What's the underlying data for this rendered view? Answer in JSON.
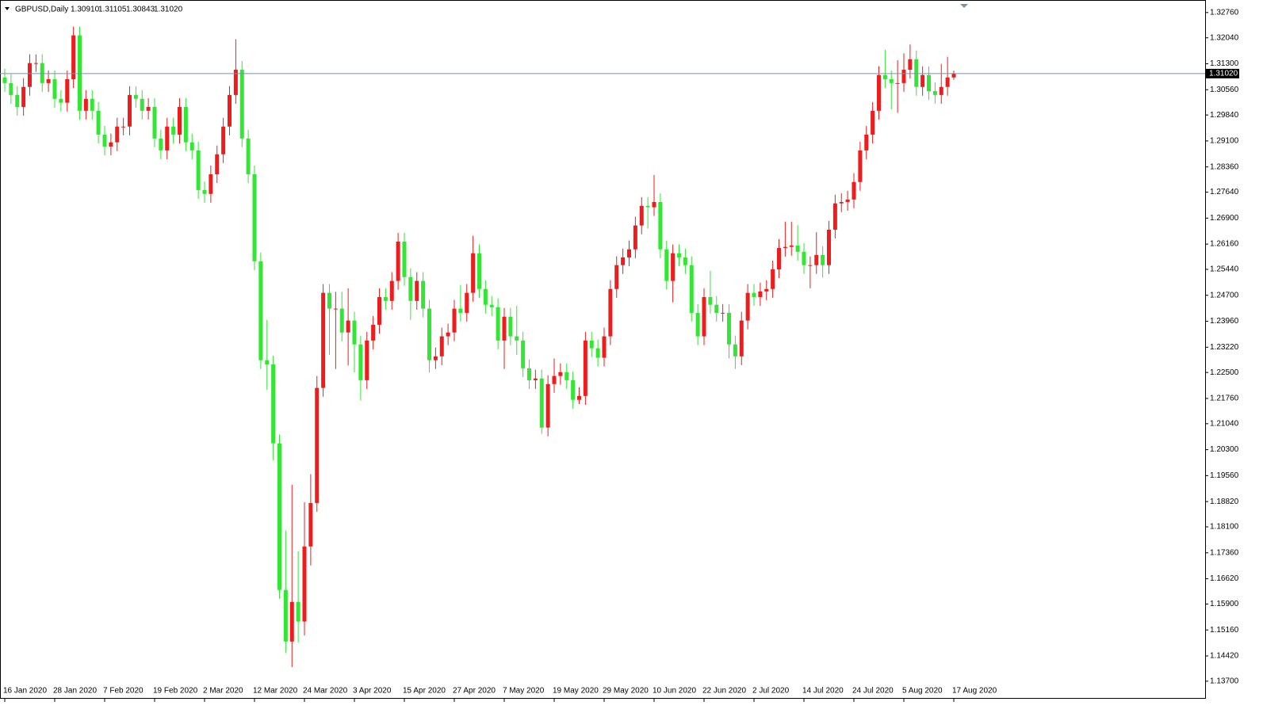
{
  "chart_data": {
    "type": "candlestick",
    "title": "GBPUSD,Daily",
    "header_values": [
      "1.30910",
      "1.31105",
      "1.30843",
      "1.31020"
    ],
    "categories": [
      "16 Jan 2020",
      null,
      null,
      null,
      null,
      null,
      null,
      null,
      "28 Jan 2020",
      null,
      null,
      null,
      null,
      null,
      null,
      null,
      "7 Feb 2020",
      null,
      null,
      null,
      null,
      null,
      null,
      null,
      "19 Feb 2020",
      null,
      null,
      null,
      null,
      null,
      null,
      null,
      "2 Mar 2020",
      null,
      null,
      null,
      null,
      null,
      null,
      null,
      "12 Mar 2020",
      null,
      null,
      null,
      null,
      null,
      null,
      null,
      "24 Mar 2020",
      null,
      null,
      null,
      null,
      null,
      null,
      null,
      "3 Apr 2020",
      null,
      null,
      null,
      null,
      null,
      null,
      null,
      "15 Apr 2020",
      null,
      null,
      null,
      null,
      null,
      null,
      null,
      "27 Apr 2020",
      null,
      null,
      null,
      null,
      null,
      null,
      null,
      "7 May 2020",
      null,
      null,
      null,
      null,
      null,
      null,
      null,
      "19 May 2020",
      null,
      null,
      null,
      null,
      null,
      null,
      null,
      "29 May 2020",
      null,
      null,
      null,
      null,
      null,
      null,
      null,
      "10 Jun 2020",
      null,
      null,
      null,
      null,
      null,
      null,
      null,
      "22 Jun 2020",
      null,
      null,
      null,
      null,
      null,
      null,
      null,
      "2 Jul 2020",
      null,
      null,
      null,
      null,
      null,
      null,
      null,
      "14 Jul 2020",
      null,
      null,
      null,
      null,
      null,
      null,
      null,
      "24 Jul 2020",
      null,
      null,
      null,
      null,
      null,
      null,
      null,
      "5 Aug 2020",
      null,
      null,
      null,
      null,
      null,
      null,
      null,
      "17 Aug 2020"
    ],
    "open": [
      1.3091,
      1.3075,
      1.3041,
      1.3007,
      1.3064,
      1.3132,
      1.3132,
      1.3075,
      1.3086,
      1.303,
      1.3019,
      1.3086,
      1.3211,
      1.2996,
      1.303,
      1.2996,
      1.2928,
      1.2894,
      1.2906,
      1.2951,
      1.2951,
      1.3041,
      1.303,
      1.2996,
      1.3007,
      1.2917,
      1.2883,
      1.2951,
      1.2928,
      1.3007,
      1.2906,
      1.2883,
      1.277,
      1.2759,
      1.2815,
      1.2872,
      1.2951,
      1.3041,
      1.3113,
      1.2917,
      1.2815,
      1.2567,
      1.2285,
      1.2273,
      1.2048,
      1.163,
      1.1483,
      1.1596,
      1.154,
      1.1754,
      1.1878,
      1.2206,
      1.2477,
      1.2432,
      1.2432,
      1.2364,
      1.2398,
      1.233,
      1.2228,
      1.2341,
      1.2386,
      1.2465,
      1.2454,
      1.2511,
      1.2623,
      1.2522,
      1.2454,
      1.2511,
      1.2432,
      1.2285,
      1.2296,
      1.2353,
      1.2364,
      1.2432,
      1.242,
      1.2477,
      1.259,
      1.2488,
      1.2443,
      1.2436,
      1.2341,
      1.2409,
      1.2353,
      1.2341,
      1.2262,
      1.2228,
      1.2233,
      1.2093,
      1.2217,
      1.224,
      1.2251,
      1.2228,
      1.2172,
      1.2183,
      1.2341,
      1.2319,
      1.2292,
      1.2353,
      1.2488,
      1.2556,
      1.2578,
      1.2601,
      1.2669,
      1.2725,
      1.2721,
      1.2736,
      1.2601,
      1.2511,
      1.259,
      1.2578,
      1.2556,
      1.242,
      1.2353,
      1.2465,
      1.2443,
      1.242,
      1.242,
      1.233,
      1.2296,
      1.2398,
      1.2477,
      1.2465,
      1.2481,
      1.2488,
      1.2544,
      1.2605,
      1.2608,
      1.2612,
      1.2594,
      1.2556,
      1.2556,
      1.2585,
      1.2556,
      1.2657,
      1.2732,
      1.2736,
      1.2743,
      1.2793,
      1.2883,
      1.2928,
      1.2996,
      1.3098,
      1.3086,
      1.3075,
      1.3075,
      1.3113,
      1.3143,
      1.3064,
      1.3098,
      1.3052,
      1.3041,
      1.3064,
      1.3091
    ],
    "high": [
      1.3116,
      1.31,
      1.3066,
      1.3089,
      1.3157,
      1.3157,
      1.3157,
      1.3111,
      1.3111,
      1.3055,
      1.3111,
      1.3236,
      1.3236,
      1.3055,
      1.3055,
      1.3021,
      1.2953,
      1.2931,
      1.2976,
      1.2976,
      1.3066,
      1.3066,
      1.3055,
      1.3032,
      1.3032,
      1.2942,
      1.2976,
      1.2976,
      1.3032,
      1.3032,
      1.2931,
      1.2908,
      1.2795,
      1.284,
      1.2897,
      1.2976,
      1.3066,
      1.32,
      1.3138,
      1.2942,
      1.284,
      1.2592,
      1.24,
      1.2298,
      1.2073,
      1.18,
      1.193,
      1.174,
      1.188,
      1.196,
      1.224,
      1.2502,
      1.2502,
      1.248,
      1.248,
      1.249,
      1.2423,
      1.2355,
      1.2366,
      1.2411,
      1.249,
      1.249,
      1.2536,
      1.2648,
      1.2648,
      1.2547,
      1.2536,
      1.2536,
      1.2457,
      1.2321,
      1.2378,
      1.2389,
      1.2457,
      1.25,
      1.2502,
      1.264,
      1.2615,
      1.2513,
      1.2468,
      1.2461,
      1.2434,
      1.2434,
      1.244,
      1.2366,
      1.2287,
      1.2258,
      1.2258,
      1.2242,
      1.229,
      1.2276,
      1.2276,
      1.2253,
      1.2208,
      1.2366,
      1.2366,
      1.2344,
      1.2378,
      1.2513,
      1.2581,
      1.2603,
      1.2626,
      1.2694,
      1.275,
      1.275,
      1.2813,
      1.2761,
      1.2626,
      1.2615,
      1.2615,
      1.2603,
      1.2581,
      1.2445,
      1.249,
      1.254,
      1.2468,
      1.2445,
      1.2445,
      1.2355,
      1.2423,
      1.2502,
      1.2502,
      1.2506,
      1.2513,
      1.2569,
      1.263,
      1.268,
      1.268,
      1.267,
      1.2619,
      1.2581,
      1.265,
      1.261,
      1.2682,
      1.2757,
      1.2761,
      1.2768,
      1.2818,
      1.2908,
      1.2953,
      1.3021,
      1.3123,
      1.317,
      1.3111,
      1.314,
      1.316,
      1.3185,
      1.3168,
      1.3123,
      1.3123,
      1.3077,
      1.313,
      1.315,
      1.31105
    ],
    "low": [
      1.305,
      1.3016,
      1.2982,
      1.2982,
      1.3039,
      1.3107,
      1.305,
      1.305,
      1.3005,
      1.2994,
      1.2994,
      1.3061,
      1.2971,
      1.2971,
      1.2971,
      1.2903,
      1.2869,
      1.2869,
      1.2881,
      1.2926,
      1.2926,
      1.3005,
      1.2971,
      1.2971,
      1.2892,
      1.2858,
      1.2858,
      1.2903,
      1.2903,
      1.2881,
      1.2858,
      1.2745,
      1.2734,
      1.2734,
      1.279,
      1.2847,
      1.2926,
      1.3016,
      1.2892,
      1.279,
      1.2542,
      1.226,
      1.22,
      1.2,
      1.1605,
      1.145,
      1.141,
      1.148,
      1.15,
      1.17,
      1.1853,
      1.2181,
      1.23,
      1.226,
      1.2339,
      1.227,
      1.225,
      1.217,
      1.2203,
      1.2316,
      1.2361,
      1.2429,
      1.2429,
      1.2486,
      1.2497,
      1.24,
      1.2429,
      1.2407,
      1.225,
      1.226,
      1.2271,
      1.2328,
      1.2339,
      1.2395,
      1.2395,
      1.2452,
      1.2463,
      1.2418,
      1.2411,
      1.2316,
      1.226,
      1.2328,
      1.23,
      1.2237,
      1.2203,
      1.2203,
      1.2075,
      1.2068,
      1.2192,
      1.2215,
      1.2203,
      1.2147,
      1.216,
      1.2158,
      1.2294,
      1.2267,
      1.2267,
      1.2328,
      1.2463,
      1.2531,
      1.2553,
      1.2576,
      1.2644,
      1.266,
      1.2696,
      1.2576,
      1.2486,
      1.245,
      1.2553,
      1.2531,
      1.2395,
      1.2328,
      1.2328,
      1.2418,
      1.2395,
      1.2395,
      1.229,
      1.226,
      1.2271,
      1.2373,
      1.244,
      1.244,
      1.2456,
      1.2463,
      1.2519,
      1.258,
      1.2583,
      1.2569,
      1.2531,
      1.249,
      1.2531,
      1.252,
      1.2531,
      1.2632,
      1.2707,
      1.2711,
      1.2718,
      1.2768,
      1.2858,
      1.2903,
      1.2971,
      1.3061,
      1.3,
      1.299,
      1.305,
      1.3088,
      1.3039,
      1.3039,
      1.3027,
      1.3016,
      1.3016,
      1.3039,
      1.30843
    ],
    "close": [
      1.3075,
      1.3041,
      1.3007,
      1.3064,
      1.3132,
      1.3132,
      1.3075,
      1.3086,
      1.303,
      1.3019,
      1.3086,
      1.3211,
      1.2996,
      1.303,
      1.2996,
      1.2928,
      1.2894,
      1.2906,
      1.2951,
      1.2951,
      1.3041,
      1.303,
      1.2996,
      1.3007,
      1.2917,
      1.2883,
      1.2951,
      1.2928,
      1.3007,
      1.2906,
      1.2883,
      1.277,
      1.2759,
      1.2815,
      1.2872,
      1.2951,
      1.3041,
      1.3113,
      1.2917,
      1.2815,
      1.2567,
      1.2285,
      1.2273,
      1.2048,
      1.163,
      1.1483,
      1.1596,
      1.154,
      1.1754,
      1.1878,
      1.2206,
      1.2477,
      1.2432,
      1.2432,
      1.2364,
      1.2398,
      1.233,
      1.2228,
      1.2341,
      1.2386,
      1.2465,
      1.2454,
      1.2511,
      1.2623,
      1.2522,
      1.2454,
      1.2511,
      1.2432,
      1.2285,
      1.2296,
      1.2353,
      1.2364,
      1.2432,
      1.242,
      1.2477,
      1.259,
      1.2488,
      1.2443,
      1.2436,
      1.2341,
      1.2409,
      1.2353,
      1.2341,
      1.2262,
      1.2228,
      1.2233,
      1.2093,
      1.2217,
      1.224,
      1.2251,
      1.2228,
      1.2172,
      1.2183,
      1.2341,
      1.2319,
      1.2292,
      1.2353,
      1.2488,
      1.2556,
      1.2578,
      1.2601,
      1.2669,
      1.2725,
      1.2721,
      1.2736,
      1.2601,
      1.2511,
      1.259,
      1.2578,
      1.2556,
      1.242,
      1.2353,
      1.2465,
      1.2443,
      1.242,
      1.242,
      1.233,
      1.2296,
      1.2398,
      1.2477,
      1.2465,
      1.2481,
      1.2488,
      1.2544,
      1.2605,
      1.2608,
      1.2612,
      1.2594,
      1.2556,
      1.2556,
      1.2585,
      1.2556,
      1.2657,
      1.2732,
      1.2736,
      1.2743,
      1.2793,
      1.2883,
      1.2928,
      1.2996,
      1.3098,
      1.3086,
      1.3075,
      1.3075,
      1.3113,
      1.3143,
      1.3064,
      1.3098,
      1.3052,
      1.3041,
      1.3064,
      1.3091,
      1.3102
    ],
    "up_color": "#ee1c1c",
    "down_color": "#33e633",
    "ylim": [
      1.132,
      1.3305
    ],
    "yticks": [
      {
        "value": 1.3276,
        "label": "1.32760"
      },
      {
        "value": 1.3204,
        "label": "1.32040"
      },
      {
        "value": 1.313,
        "label": "1.31300"
      },
      {
        "value": 1.3056,
        "label": "1.30560"
      },
      {
        "value": 1.2984,
        "label": "1.29840"
      },
      {
        "value": 1.291,
        "label": "1.29100"
      },
      {
        "value": 1.2836,
        "label": "1.28360"
      },
      {
        "value": 1.2764,
        "label": "1.27640"
      },
      {
        "value": 1.269,
        "label": "1.26900"
      },
      {
        "value": 1.2616,
        "label": "1.26160"
      },
      {
        "value": 1.2544,
        "label": "1.25440"
      },
      {
        "value": 1.247,
        "label": "1.24700"
      },
      {
        "value": 1.2396,
        "label": "1.23960"
      },
      {
        "value": 1.2322,
        "label": "1.23220"
      },
      {
        "value": 1.225,
        "label": "1.22500"
      },
      {
        "value": 1.2176,
        "label": "1.21760"
      },
      {
        "value": 1.2104,
        "label": "1.21040"
      },
      {
        "value": 1.203,
        "label": "1.20300"
      },
      {
        "value": 1.1956,
        "label": "1.19560"
      },
      {
        "value": 1.1882,
        "label": "1.18820"
      },
      {
        "value": 1.181,
        "label": "1.18100"
      },
      {
        "value": 1.1736,
        "label": "1.17360"
      },
      {
        "value": 1.1662,
        "label": "1.16620"
      },
      {
        "value": 1.159,
        "label": "1.15900"
      },
      {
        "value": 1.1516,
        "label": "1.15160"
      },
      {
        "value": 1.1442,
        "label": "1.14420"
      },
      {
        "value": 1.137,
        "label": "1.13700"
      }
    ],
    "current_price": {
      "value": 1.3102,
      "label": "1.31020"
    },
    "current_price_color": "#7f8fa6"
  }
}
